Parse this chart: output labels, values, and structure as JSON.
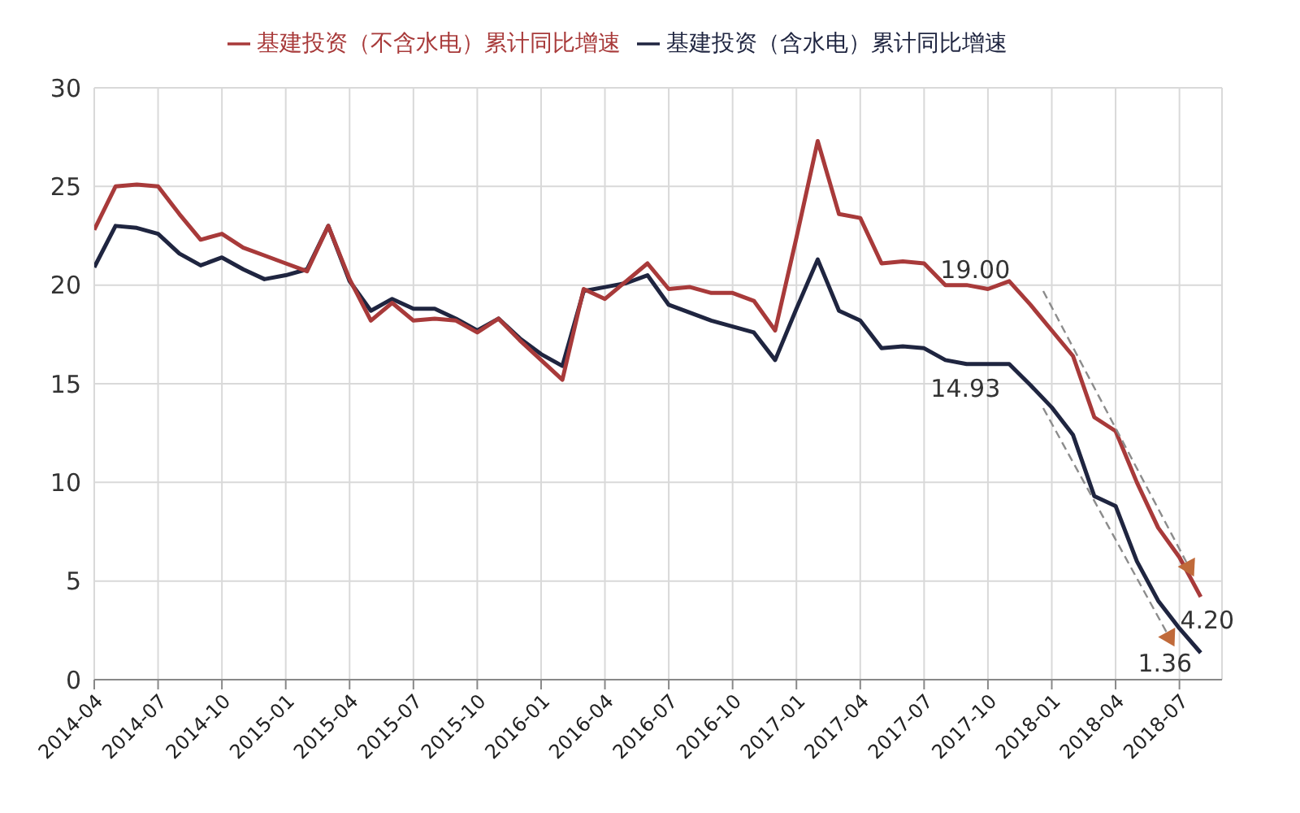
{
  "chart_data": {
    "type": "line",
    "x": [
      "2014-04",
      "2014-05",
      "2014-06",
      "2014-07",
      "2014-08",
      "2014-09",
      "2014-10",
      "2014-11",
      "2014-12",
      "2015-01",
      "2015-02",
      "2015-03",
      "2015-04",
      "2015-05",
      "2015-06",
      "2015-07",
      "2015-08",
      "2015-09",
      "2015-10",
      "2015-11",
      "2015-12",
      "2016-01",
      "2016-02",
      "2016-03",
      "2016-04",
      "2016-05",
      "2016-06",
      "2016-07",
      "2016-08",
      "2016-09",
      "2016-10",
      "2016-11",
      "2016-12",
      "2017-01",
      "2017-02",
      "2017-03",
      "2017-04",
      "2017-05",
      "2017-06",
      "2017-07",
      "2017-08",
      "2017-09",
      "2017-10",
      "2017-11",
      "2017-12",
      "2018-01",
      "2018-02",
      "2018-03",
      "2018-04",
      "2018-05",
      "2018-06",
      "2018-07",
      "2018-08"
    ],
    "series": [
      {
        "name": "基建投资（含水电）累计同比增速",
        "color": "#1f2540",
        "values": [
          20.9,
          23.0,
          22.9,
          22.6,
          21.6,
          21.0,
          21.4,
          20.8,
          20.3,
          20.5,
          20.8,
          23.0,
          20.2,
          18.7,
          19.3,
          18.8,
          18.8,
          18.3,
          17.7,
          18.3,
          17.3,
          16.5,
          15.9,
          19.7,
          19.9,
          20.1,
          20.5,
          19.0,
          18.6,
          18.2,
          17.9,
          17.6,
          16.2,
          18.8,
          21.3,
          18.7,
          18.2,
          16.8,
          16.9,
          16.8,
          16.2,
          16.0,
          16.0,
          16.0,
          14.93,
          13.8,
          12.4,
          9.3,
          8.8,
          6.0,
          4.0,
          2.6,
          1.36
        ]
      },
      {
        "name": "基建投资（不含水电）累计同比增速",
        "color": "#a83a3a",
        "values": [
          22.8,
          25.0,
          25.1,
          25.0,
          23.6,
          22.3,
          22.6,
          21.9,
          21.5,
          21.1,
          20.7,
          23.0,
          20.3,
          18.2,
          19.1,
          18.2,
          18.3,
          18.2,
          17.6,
          18.3,
          17.2,
          16.2,
          15.2,
          19.8,
          19.3,
          20.2,
          21.1,
          19.8,
          19.9,
          19.6,
          19.6,
          19.2,
          17.7,
          22.4,
          27.3,
          23.6,
          23.4,
          21.1,
          21.2,
          21.1,
          20.0,
          20.0,
          19.8,
          20.2,
          19.0,
          17.7,
          16.4,
          13.3,
          12.6,
          10.0,
          7.7,
          6.2,
          4.2
        ]
      }
    ],
    "xlim": [
      "2014-04",
      "2018-09"
    ],
    "xticks": [
      "2014-04",
      "2014-07",
      "2014-10",
      "2015-01",
      "2015-04",
      "2015-07",
      "2015-10",
      "2016-01",
      "2016-04",
      "2016-07",
      "2016-10",
      "2017-01",
      "2017-04",
      "2017-07",
      "2017-10",
      "2018-01",
      "2018-04",
      "2018-07"
    ],
    "ylim": [
      0,
      30
    ],
    "yticks": [
      0,
      5,
      10,
      15,
      20,
      25,
      30
    ],
    "grid": true,
    "legend": "top",
    "marker": "none",
    "line_style": "solid",
    "annotations": [
      {
        "text": "19.00",
        "x": "2017-12",
        "y": 19.0
      },
      {
        "text": "14.93",
        "x": "2017-12",
        "y": 14.93
      },
      {
        "text": "4.20",
        "x": "2018-08",
        "y": 4.2
      },
      {
        "text": "1.36",
        "x": "2018-08",
        "y": 1.36
      }
    ]
  }
}
